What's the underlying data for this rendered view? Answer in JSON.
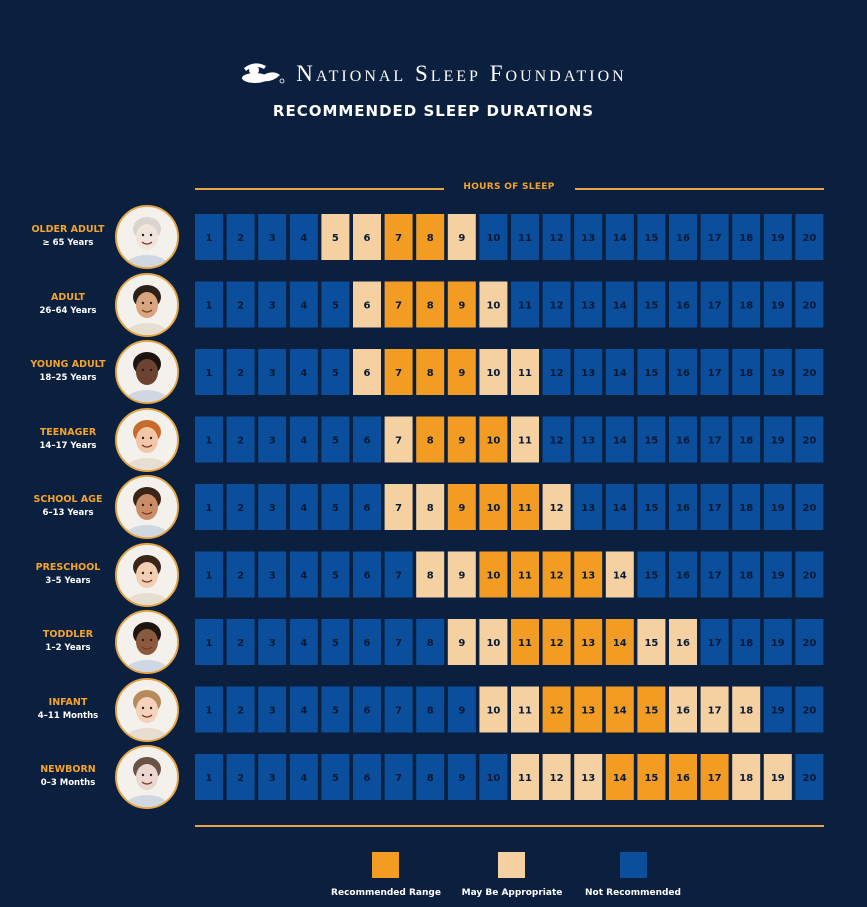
{
  "header": {
    "brand": "National Sleep Foundation",
    "subtitle": "RECOMMENDED SLEEP DURATIONS"
  },
  "colors": {
    "recommended": "#f39c24",
    "may_be_appropriate": "#f5d0a0",
    "not_recommended": "#0b4f9c",
    "background": "#0b1f3f",
    "accent": "#f5a42b"
  },
  "chart_data": {
    "type": "table",
    "title": "RECOMMENDED SLEEP DURATIONS",
    "xlabel": "HOURS OF SLEEP",
    "hours": [
      1,
      2,
      3,
      4,
      5,
      6,
      7,
      8,
      9,
      10,
      11,
      12,
      13,
      14,
      15,
      16,
      17,
      18,
      19,
      20
    ],
    "legend": [
      {
        "key": "recommended",
        "label": "Recommended Range"
      },
      {
        "key": "may_be_appropriate",
        "label": "May Be Appropriate"
      },
      {
        "key": "not_recommended",
        "label": "Not Recommended"
      }
    ],
    "groups": [
      {
        "name": "OLDER ADULT",
        "range": "≥ 65 Years",
        "recommended": [
          7,
          8
        ],
        "may_be_appropriate": [
          5,
          6,
          9
        ]
      },
      {
        "name": "ADULT",
        "range": "26–64 Years",
        "recommended": [
          7,
          8,
          9
        ],
        "may_be_appropriate": [
          6,
          10
        ]
      },
      {
        "name": "YOUNG ADULT",
        "range": "18–25 Years",
        "recommended": [
          7,
          8,
          9
        ],
        "may_be_appropriate": [
          6,
          10,
          11
        ]
      },
      {
        "name": "TEENAGER",
        "range": "14–17 Years",
        "recommended": [
          8,
          9,
          10
        ],
        "may_be_appropriate": [
          7,
          11
        ]
      },
      {
        "name": "SCHOOL AGE",
        "range": "6–13 Years",
        "recommended": [
          9,
          10,
          11
        ],
        "may_be_appropriate": [
          7,
          8,
          12
        ]
      },
      {
        "name": "PRESCHOOL",
        "range": "3–5 Years",
        "recommended": [
          10,
          11,
          12,
          13
        ],
        "may_be_appropriate": [
          8,
          9,
          14
        ]
      },
      {
        "name": "TODDLER",
        "range": "1–2 Years",
        "recommended": [
          11,
          12,
          13,
          14
        ],
        "may_be_appropriate": [
          9,
          10,
          15,
          16
        ]
      },
      {
        "name": "INFANT",
        "range": "4–11 Months",
        "recommended": [
          12,
          13,
          14,
          15
        ],
        "may_be_appropriate": [
          10,
          11,
          16,
          17,
          18
        ]
      },
      {
        "name": "NEWBORN",
        "range": "0–3 Months",
        "recommended": [
          14,
          15,
          16,
          17
        ],
        "may_be_appropriate": [
          11,
          12,
          13,
          18,
          19
        ]
      }
    ]
  }
}
